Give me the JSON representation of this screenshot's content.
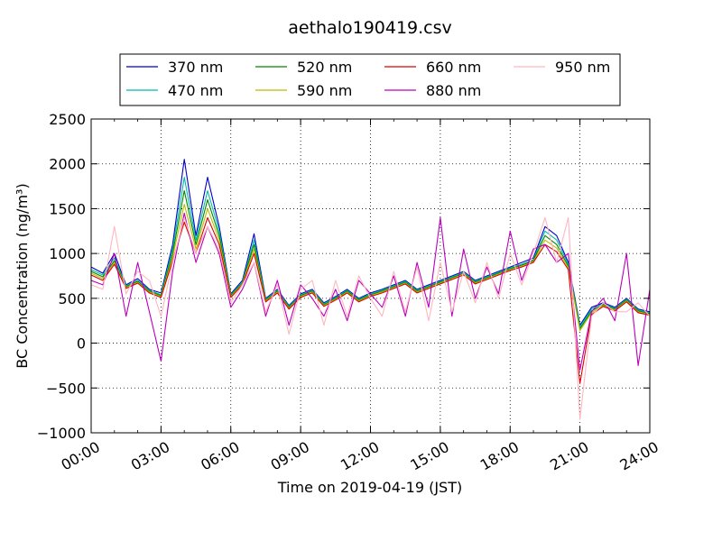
{
  "chart_data": {
    "type": "line",
    "title": "aethalo190419.csv",
    "xlabel": "Time on 2019-04-19 (JST)",
    "ylabel": "BC Concentration (ng/m³)",
    "ylim": [
      -1000,
      2500
    ],
    "xlim": [
      "00:00",
      "24:00"
    ],
    "x_ticks": [
      "00:00",
      "03:00",
      "06:00",
      "09:00",
      "12:00",
      "15:00",
      "18:00",
      "21:00",
      "24:00"
    ],
    "y_ticks": [
      -1000,
      -500,
      0,
      500,
      1000,
      1500,
      2000,
      2500
    ],
    "y_tick_labels": [
      "−1000",
      "−500",
      "0",
      "500",
      "1000",
      "1500",
      "2000",
      "2500"
    ],
    "grid": true,
    "legend_position": "top-center",
    "x": [
      "00:00",
      "00:30",
      "01:00",
      "01:30",
      "02:00",
      "02:30",
      "03:00",
      "03:30",
      "04:00",
      "04:30",
      "05:00",
      "05:30",
      "06:00",
      "06:30",
      "07:00",
      "07:30",
      "08:00",
      "08:30",
      "09:00",
      "09:30",
      "10:00",
      "10:30",
      "11:00",
      "11:30",
      "12:00",
      "12:30",
      "13:00",
      "13:30",
      "14:00",
      "14:30",
      "15:00",
      "15:30",
      "16:00",
      "16:30",
      "17:00",
      "17:30",
      "18:00",
      "18:30",
      "19:00",
      "19:30",
      "20:00",
      "20:30",
      "21:00",
      "21:30",
      "22:00",
      "22:30",
      "23:00",
      "23:30",
      "24:00"
    ],
    "series": [
      {
        "name": "370 nm",
        "color": "#0000cc",
        "values": [
          850,
          780,
          1000,
          650,
          720,
          600,
          560,
          1100,
          2050,
          1200,
          1850,
          1300,
          550,
          700,
          1220,
          500,
          600,
          420,
          550,
          600,
          450,
          520,
          600,
          500,
          560,
          600,
          650,
          700,
          600,
          650,
          700,
          750,
          800,
          700,
          750,
          800,
          850,
          900,
          950,
          1300,
          1200,
          900,
          200,
          400,
          450,
          400,
          500,
          380,
          350
        ]
      },
      {
        "name": "470 nm",
        "color": "#00bbaa",
        "values": [
          820,
          760,
          950,
          640,
          700,
          590,
          540,
          1050,
          1850,
          1150,
          1700,
          1250,
          540,
          680,
          1150,
          490,
          590,
          410,
          540,
          590,
          440,
          510,
          590,
          490,
          550,
          590,
          640,
          690,
          590,
          640,
          690,
          740,
          790,
          690,
          740,
          790,
          840,
          880,
          930,
          1250,
          1150,
          880,
          180,
          380,
          440,
          390,
          490,
          370,
          340
        ]
      },
      {
        "name": "520 nm",
        "color": "#008800",
        "values": [
          800,
          740,
          920,
          630,
          690,
          580,
          530,
          1000,
          1700,
          1100,
          1600,
          1200,
          530,
          670,
          1100,
          480,
          580,
          400,
          530,
          580,
          430,
          500,
          580,
          480,
          540,
          580,
          630,
          680,
          580,
          630,
          680,
          730,
          780,
          680,
          730,
          780,
          830,
          870,
          920,
          1200,
          1100,
          860,
          160,
          360,
          430,
          380,
          480,
          360,
          330
        ]
      },
      {
        "name": "590 nm",
        "color": "#bbbb00",
        "values": [
          780,
          720,
          900,
          620,
          680,
          570,
          520,
          960,
          1550,
          1050,
          1500,
          1150,
          520,
          660,
          1050,
          470,
          570,
          390,
          520,
          570,
          420,
          490,
          570,
          470,
          530,
          570,
          620,
          670,
          570,
          620,
          670,
          720,
          770,
          670,
          720,
          770,
          820,
          860,
          910,
          1150,
          1060,
          840,
          140,
          340,
          420,
          370,
          470,
          350,
          320
        ]
      },
      {
        "name": "660 nm",
        "color": "#dd0000",
        "values": [
          760,
          700,
          880,
          610,
          670,
          560,
          510,
          920,
          1350,
          1000,
          1400,
          1100,
          510,
          650,
          1000,
          460,
          560,
          380,
          510,
          560,
          410,
          480,
          560,
          460,
          520,
          560,
          610,
          660,
          560,
          610,
          660,
          710,
          760,
          660,
          710,
          760,
          810,
          850,
          900,
          1100,
          1020,
          820,
          -450,
          320,
          410,
          360,
          460,
          340,
          310
        ]
      },
      {
        "name": "880 nm",
        "color": "#bb00bb",
        "values": [
          700,
          650,
          1000,
          300,
          900,
          350,
          -200,
          800,
          1450,
          900,
          1300,
          1000,
          400,
          600,
          900,
          300,
          700,
          200,
          650,
          500,
          300,
          600,
          250,
          700,
          550,
          400,
          750,
          300,
          900,
          400,
          1400,
          300,
          1050,
          500,
          850,
          550,
          1250,
          700,
          1050,
          1100,
          900,
          1000,
          -300,
          350,
          500,
          250,
          1000,
          -250,
          600
        ]
      },
      {
        "name": "950 nm",
        "color": "#ffb6c1",
        "values": [
          650,
          600,
          1300,
          550,
          800,
          700,
          300,
          900,
          1400,
          1000,
          1300,
          1050,
          450,
          650,
          900,
          350,
          650,
          100,
          600,
          700,
          200,
          700,
          300,
          750,
          500,
          300,
          800,
          350,
          850,
          250,
          900,
          350,
          800,
          450,
          900,
          500,
          1000,
          650,
          1000,
          1400,
          900,
          1400,
          -850,
          300,
          450,
          350,
          350,
          450,
          300
        ]
      }
    ]
  }
}
